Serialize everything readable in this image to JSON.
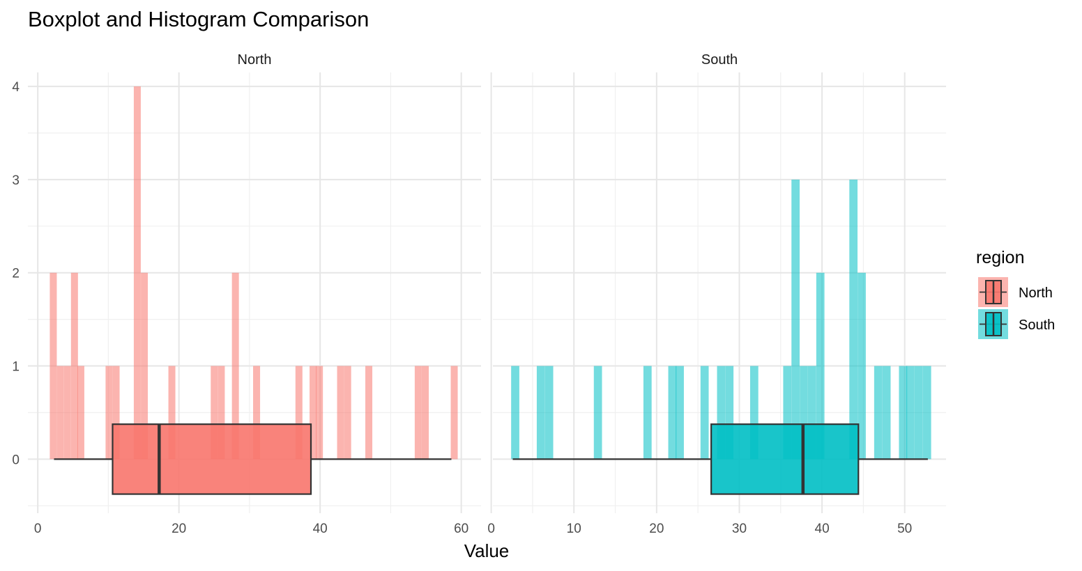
{
  "chart_data": {
    "type": "histogram+boxplot",
    "title": "Boxplot and Histogram Comparison",
    "xlabel": "Value",
    "ylabel": "",
    "ylim": [
      -0.58,
      4.15
    ],
    "yticks": [
      0,
      1,
      2,
      3,
      4
    ],
    "grid": true,
    "legend": {
      "title": "region",
      "position": "right",
      "items": [
        {
          "label": "North",
          "color": "#F8766D"
        },
        {
          "label": "South",
          "color": "#00BFC4"
        }
      ]
    },
    "panels": [
      {
        "strip": "North",
        "xlim": [
          -1.4,
          62.8
        ],
        "xticks": [
          0,
          20,
          40,
          60
        ],
        "fill": "#F8766D",
        "binwidth": 0.99,
        "histogram": [
          {
            "x": 2.2,
            "count": 2
          },
          {
            "x": 3.2,
            "count": 1
          },
          {
            "x": 4.2,
            "count": 1
          },
          {
            "x": 5.2,
            "count": 2
          },
          {
            "x": 6.1,
            "count": 1
          },
          {
            "x": 10.1,
            "count": 1
          },
          {
            "x": 11.1,
            "count": 1
          },
          {
            "x": 14.1,
            "count": 4
          },
          {
            "x": 15.1,
            "count": 2
          },
          {
            "x": 19.0,
            "count": 1
          },
          {
            "x": 25.0,
            "count": 1
          },
          {
            "x": 26.0,
            "count": 1
          },
          {
            "x": 28.0,
            "count": 2
          },
          {
            "x": 31.0,
            "count": 1
          },
          {
            "x": 37.0,
            "count": 1
          },
          {
            "x": 39.0,
            "count": 1
          },
          {
            "x": 39.9,
            "count": 1
          },
          {
            "x": 42.9,
            "count": 1
          },
          {
            "x": 43.9,
            "count": 1
          },
          {
            "x": 46.9,
            "count": 1
          },
          {
            "x": 53.9,
            "count": 1
          },
          {
            "x": 54.9,
            "count": 1
          },
          {
            "x": 59.0,
            "count": 1
          }
        ],
        "boxplot": {
          "min": 2.3,
          "q1": 10.6,
          "median": 17.2,
          "q3": 38.7,
          "max": 58.6,
          "ymin": -0.375,
          "ymax": 0.375
        }
      },
      {
        "strip": "South",
        "xlim": [
          0.2,
          55.0
        ],
        "xticks": [
          0,
          10,
          20,
          30,
          40,
          50
        ],
        "fill": "#00BFC4",
        "binwidth": 0.99,
        "histogram": [
          {
            "x": 2.9,
            "count": 1
          },
          {
            "x": 6.0,
            "count": 1
          },
          {
            "x": 7.0,
            "count": 1
          },
          {
            "x": 12.9,
            "count": 1
          },
          {
            "x": 18.9,
            "count": 1
          },
          {
            "x": 21.9,
            "count": 1
          },
          {
            "x": 22.8,
            "count": 1
          },
          {
            "x": 25.8,
            "count": 1
          },
          {
            "x": 27.8,
            "count": 1
          },
          {
            "x": 28.8,
            "count": 1
          },
          {
            "x": 31.8,
            "count": 1
          },
          {
            "x": 35.8,
            "count": 1
          },
          {
            "x": 36.8,
            "count": 3
          },
          {
            "x": 37.8,
            "count": 1
          },
          {
            "x": 38.8,
            "count": 1
          },
          {
            "x": 39.8,
            "count": 2
          },
          {
            "x": 43.8,
            "count": 3
          },
          {
            "x": 44.8,
            "count": 2
          },
          {
            "x": 46.8,
            "count": 1
          },
          {
            "x": 47.8,
            "count": 1
          },
          {
            "x": 49.8,
            "count": 1
          },
          {
            "x": 50.7,
            "count": 1
          },
          {
            "x": 51.7,
            "count": 1
          },
          {
            "x": 52.7,
            "count": 1
          }
        ],
        "boxplot": {
          "min": 2.6,
          "q1": 26.6,
          "median": 37.7,
          "q3": 44.4,
          "max": 52.8,
          "ymin": -0.375,
          "ymax": 0.375
        }
      }
    ]
  }
}
